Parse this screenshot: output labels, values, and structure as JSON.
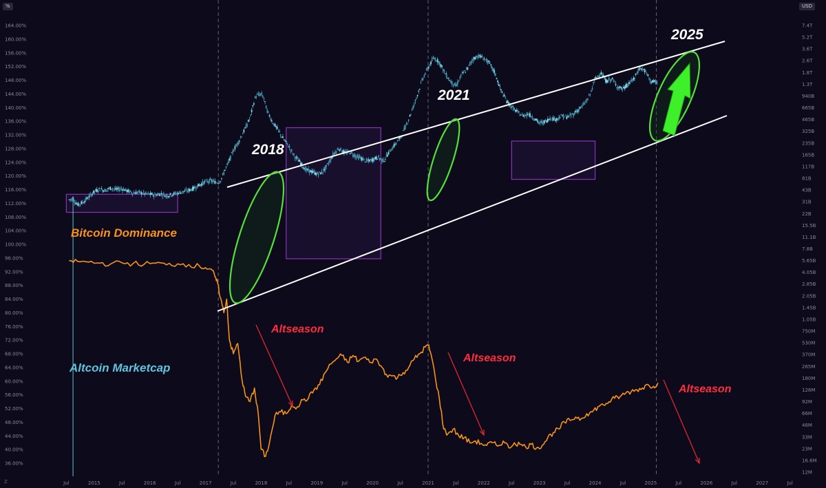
{
  "corner": {
    "left": "%",
    "right": "USD",
    "bottom_left": "Z"
  },
  "chart_data": {
    "type": "line",
    "left_axis": {
      "labels": [
        "164.00%",
        "160.00%",
        "156.00%",
        "152.00%",
        "148.00%",
        "144.00%",
        "140.00%",
        "136.00%",
        "132.00%",
        "128.00%",
        "124.00%",
        "120.00%",
        "116.00%",
        "112.00%",
        "108.00%",
        "104.00%",
        "100.00%",
        "96.00%",
        "92.00%",
        "88.00%",
        "84.00%",
        "80.00%",
        "76.00%",
        "72.00%",
        "68.00%",
        "64.00%",
        "60.00%",
        "56.00%",
        "52.00%",
        "48.00%",
        "44.00%",
        "40.00%",
        "36.00%"
      ]
    },
    "right_axis": {
      "labels": [
        "7.4T",
        "5.2T",
        "3.6T",
        "2.6T",
        "1.8T",
        "1.3T",
        "940B",
        "665B",
        "465B",
        "325B",
        "235B",
        "165B",
        "117B",
        "81B",
        "43B",
        "31B",
        "22B",
        "15.5B",
        "11.1B",
        "7.8B",
        "5.65B",
        "4.05B",
        "2.85B",
        "2.05B",
        "1.45B",
        "1.05B",
        "750M",
        "530M",
        "370M",
        "265M",
        "180M",
        "128M",
        "92M",
        "66M",
        "46M",
        "33M",
        "23M",
        "16.6M",
        "12M"
      ]
    },
    "x_axis": {
      "labels": [
        "Jul",
        "2015",
        "Jul",
        "2016",
        "Jul",
        "2017",
        "Jul",
        "2018",
        "Jul",
        "2019",
        "Jul",
        "2020",
        "Jul",
        "2021",
        "Jul",
        "2022",
        "Jul",
        "2023",
        "Jul",
        "2024",
        "Jul",
        "2025",
        "Jul",
        "2026",
        "Jul",
        "2027",
        "Jul"
      ]
    },
    "series": [
      {
        "name": "Bitcoin Dominance",
        "color": "#f7931a",
        "x": [
          2014.55,
          2014.7,
          2014.9,
          2015.1,
          2015.3,
          2015.5,
          2015.7,
          2015.9,
          2016.1,
          2016.3,
          2016.5,
          2016.7,
          2016.9,
          2017.0,
          2017.1,
          2017.17,
          2017.22,
          2017.27,
          2017.33,
          2017.38,
          2017.43,
          2017.5,
          2017.58,
          2017.66,
          2017.72,
          2017.8,
          2017.88,
          2017.95,
          2018.0,
          2018.08,
          2018.15,
          2018.25,
          2018.35,
          2018.45,
          2018.55,
          2018.65,
          2018.75,
          2018.85,
          2018.95,
          2019.05,
          2019.15,
          2019.25,
          2019.35,
          2019.45,
          2019.55,
          2019.65,
          2019.75,
          2019.85,
          2019.95,
          2020.05,
          2020.15,
          2020.25,
          2020.35,
          2020.45,
          2020.55,
          2020.65,
          2020.75,
          2020.85,
          2020.95,
          2021.0,
          2021.05,
          2021.12,
          2021.2,
          2021.28,
          2021.35,
          2021.45,
          2021.55,
          2021.65,
          2021.75,
          2021.85,
          2021.95,
          2022.05,
          2022.15,
          2022.25,
          2022.35,
          2022.45,
          2022.55,
          2022.65,
          2022.75,
          2022.85,
          2022.95,
          2023.05,
          2023.15,
          2023.25,
          2023.35,
          2023.45,
          2023.55,
          2023.65,
          2023.75,
          2023.85,
          2023.95,
          2024.05,
          2024.15,
          2024.25,
          2024.35,
          2024.45,
          2024.55,
          2024.65,
          2024.75,
          2024.85,
          2024.95,
          2025.05,
          2025.13
        ],
        "y": [
          95.2,
          95.0,
          94.8,
          94.5,
          94.3,
          94.6,
          94.4,
          94.2,
          94.5,
          94.0,
          94.3,
          94.1,
          93.5,
          93.2,
          92.8,
          90.5,
          88.5,
          84.3,
          80.0,
          84.0,
          72.0,
          68.0,
          71.0,
          60.0,
          55.5,
          54.0,
          58.0,
          50.0,
          40.0,
          38.0,
          42.0,
          50.0,
          51.0,
          50.5,
          53.0,
          52.5,
          54.5,
          55.0,
          57.5,
          59.0,
          62.5,
          65.0,
          66.5,
          67.5,
          65.5,
          67.5,
          65.8,
          67.0,
          65.5,
          66.5,
          64.5,
          62.0,
          61.5,
          61.0,
          62.5,
          64.0,
          66.5,
          68.0,
          70.0,
          70.5,
          68.0,
          62.0,
          55.0,
          46.0,
          44.5,
          46.0,
          44.0,
          43.5,
          42.0,
          42.5,
          41.8,
          41.2,
          42.0,
          41.0,
          42.5,
          40.5,
          42.0,
          41.5,
          40.8,
          41.5,
          40.5,
          41.2,
          43.5,
          45.0,
          46.0,
          48.0,
          48.5,
          49.5,
          49.0,
          50.5,
          51.0,
          52.5,
          53.0,
          54.0,
          55.0,
          55.5,
          56.5,
          57.0,
          57.5,
          58.0,
          59.0,
          58.5,
          59.5
        ]
      },
      {
        "name": "Altcoin Marketcap",
        "color": "#5ec4dc",
        "x": [
          2014.5,
          2014.62,
          2014.7,
          2014.8,
          2014.9,
          2015.0,
          2015.1,
          2015.2,
          2015.3,
          2015.4,
          2015.5,
          2015.6,
          2015.7,
          2015.8,
          2015.9,
          2016.0,
          2016.1,
          2016.2,
          2016.3,
          2016.4,
          2016.5,
          2016.6,
          2016.7,
          2016.8,
          2016.9,
          2017.0,
          2017.1,
          2017.2,
          2017.25,
          2017.3,
          2017.35,
          2017.4,
          2017.5,
          2017.6,
          2017.7,
          2017.8,
          2017.9,
          2018.0,
          2018.05,
          2018.1,
          2018.2,
          2018.3,
          2018.4,
          2018.5,
          2018.6,
          2018.7,
          2018.8,
          2018.9,
          2019.0,
          2019.1,
          2019.2,
          2019.3,
          2019.4,
          2019.5,
          2019.6,
          2019.7,
          2019.8,
          2019.9,
          2020.0,
          2020.1,
          2020.2,
          2020.3,
          2020.4,
          2020.5,
          2020.6,
          2020.7,
          2020.8,
          2020.9,
          2021.0,
          2021.1,
          2021.2,
          2021.3,
          2021.4,
          2021.5,
          2021.6,
          2021.7,
          2021.8,
          2021.9,
          2022.0,
          2022.1,
          2022.2,
          2022.3,
          2022.4,
          2022.5,
          2022.6,
          2022.7,
          2022.8,
          2022.9,
          2023.0,
          2023.1,
          2023.2,
          2023.3,
          2023.4,
          2023.5,
          2023.6,
          2023.7,
          2023.8,
          2023.9,
          2024.0,
          2024.1,
          2024.2,
          2024.3,
          2024.4,
          2024.5,
          2024.6,
          2024.7,
          2024.8,
          2024.9,
          2025.0,
          2025.1
        ],
        "y": [
          40,
          42,
          35,
          38,
          44,
          52,
          56,
          54,
          58,
          55,
          57,
          53,
          50,
          51,
          49,
          48,
          47,
          49,
          46,
          48,
          50,
          52,
          54,
          58,
          64,
          70,
          72,
          68,
          70,
          80,
          100,
          118,
          178,
          235,
          325,
          470,
          900,
          960,
          840,
          600,
          420,
          330,
          250,
          200,
          150,
          125,
          100,
          95,
          88,
          92,
          118,
          160,
          190,
          165,
          170,
          150,
          140,
          128,
          135,
          145,
          130,
          170,
          210,
          260,
          370,
          560,
          900,
          1500,
          2100,
          2800,
          2500,
          1800,
          1400,
          1200,
          1700,
          2000,
          2700,
          3000,
          2800,
          2400,
          1800,
          1100,
          800,
          650,
          560,
          500,
          530,
          470,
          400,
          420,
          470,
          450,
          500,
          480,
          520,
          600,
          700,
          900,
          1500,
          1800,
          1400,
          1500,
          1200,
          1100,
          1300,
          1500,
          2100,
          1900,
          1400,
          1350
        ]
      }
    ]
  },
  "annotations": {
    "year_2018": "2018",
    "year_2021": "2021",
    "year_2025": "2025",
    "btc_dominance_label": "Bitcoin Dominance",
    "altcoin_label": "Altcoin Marketcap",
    "altseason_1": "Altseason",
    "altseason_2": "Altseason",
    "altseason_3": "Altseason"
  },
  "colors": {
    "background": "#0d0a1c",
    "dominance": "#f7931a",
    "altcoin": "#5ec4dc",
    "channel": "#ffffff",
    "highlight_ellipse": "#55e03a",
    "consolidation_box": "#8a35b8",
    "altseason": "#ff2d3d"
  }
}
